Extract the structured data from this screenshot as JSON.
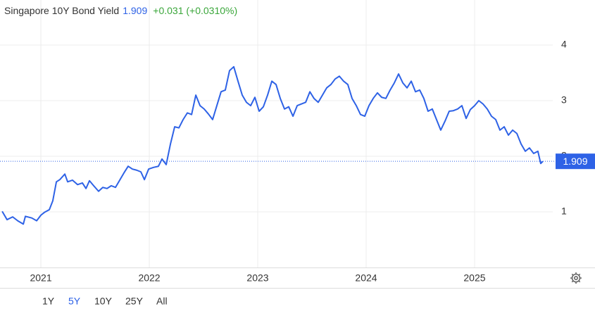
{
  "chart_data": {
    "type": "line",
    "title": "Singapore 10Y Bond Yield",
    "last_value": 1.909,
    "change": "+0.031 (+0.0310%)",
    "x": [
      2020.643,
      2020.688,
      2020.74,
      2020.786,
      2020.838,
      2020.857,
      2020.916,
      2020.961,
      2021.0,
      2021.032,
      2021.078,
      2021.11,
      2021.143,
      2021.175,
      2021.221,
      2021.247,
      2021.292,
      2021.338,
      2021.383,
      2021.416,
      2021.448,
      2021.487,
      2021.532,
      2021.571,
      2021.61,
      2021.649,
      2021.688,
      2021.727,
      2021.766,
      2021.805,
      2021.844,
      2021.883,
      2021.922,
      2021.955,
      2021.994,
      2022.039,
      2022.084,
      2022.117,
      2022.156,
      2022.195,
      2022.234,
      2022.273,
      2022.312,
      2022.351,
      2022.39,
      2022.429,
      2022.468,
      2022.506,
      2022.545,
      2022.584,
      2022.623,
      2022.662,
      2022.701,
      2022.74,
      2022.779,
      2022.818,
      2022.857,
      2022.896,
      2022.935,
      2022.974,
      2023.013,
      2023.052,
      2023.091,
      2023.13,
      2023.169,
      2023.208,
      2023.247,
      2023.286,
      2023.325,
      2023.364,
      2023.403,
      2023.442,
      2023.481,
      2023.519,
      2023.558,
      2023.597,
      2023.636,
      2023.675,
      2023.714,
      2023.753,
      2023.792,
      2023.831,
      2023.87,
      2023.909,
      2023.948,
      2023.987,
      2024.026,
      2024.065,
      2024.104,
      2024.143,
      2024.182,
      2024.221,
      2024.26,
      2024.299,
      2024.338,
      2024.377,
      2024.416,
      2024.455,
      2024.494,
      2024.532,
      2024.571,
      2024.61,
      2024.649,
      2024.688,
      2024.727,
      2024.766,
      2024.805,
      2024.844,
      2024.883,
      2024.922,
      2024.961,
      2025.0,
      2025.039,
      2025.078,
      2025.117,
      2025.156,
      2025.195,
      2025.234,
      2025.273,
      2025.312,
      2025.351,
      2025.39,
      2025.429,
      2025.468,
      2025.506,
      2025.545,
      2025.584,
      2025.61,
      2025.63
    ],
    "series": [
      {
        "color": "#2e62e6",
        "values": [
          1.01,
          0.86,
          0.91,
          0.84,
          0.78,
          0.92,
          0.89,
          0.84,
          0.94,
          0.99,
          1.04,
          1.2,
          1.54,
          1.58,
          1.68,
          1.54,
          1.57,
          1.49,
          1.52,
          1.42,
          1.56,
          1.47,
          1.37,
          1.44,
          1.42,
          1.47,
          1.44,
          1.57,
          1.7,
          1.82,
          1.77,
          1.75,
          1.72,
          1.58,
          1.77,
          1.8,
          1.82,
          1.95,
          1.85,
          2.22,
          2.53,
          2.51,
          2.66,
          2.78,
          2.75,
          3.1,
          2.91,
          2.85,
          2.76,
          2.66,
          2.91,
          3.16,
          3.19,
          3.54,
          3.61,
          3.35,
          3.1,
          2.97,
          2.91,
          3.06,
          2.81,
          2.89,
          3.1,
          3.35,
          3.29,
          3.04,
          2.85,
          2.89,
          2.72,
          2.91,
          2.94,
          2.97,
          3.16,
          3.04,
          2.97,
          3.1,
          3.23,
          3.29,
          3.39,
          3.44,
          3.35,
          3.29,
          3.04,
          2.91,
          2.75,
          2.72,
          2.91,
          3.04,
          3.14,
          3.06,
          3.04,
          3.19,
          3.32,
          3.48,
          3.32,
          3.23,
          3.35,
          3.16,
          3.19,
          3.04,
          2.81,
          2.85,
          2.66,
          2.47,
          2.63,
          2.81,
          2.82,
          2.85,
          2.91,
          2.68,
          2.84,
          2.91,
          3.0,
          2.94,
          2.85,
          2.72,
          2.66,
          2.47,
          2.53,
          2.38,
          2.47,
          2.41,
          2.22,
          2.09,
          2.15,
          2.05,
          2.09,
          1.87,
          1.909
        ]
      }
    ],
    "xlim": [
      2020.623,
      2025.721
    ],
    "xticks": [
      2021,
      2022,
      2023,
      2024,
      2025
    ],
    "ylim": [
      0,
      4.81
    ],
    "yticks": [
      1,
      2,
      3,
      4
    ],
    "grid": true,
    "range_buttons": [
      "1Y",
      "5Y",
      "10Y",
      "25Y",
      "All"
    ],
    "active_range": "5Y"
  }
}
